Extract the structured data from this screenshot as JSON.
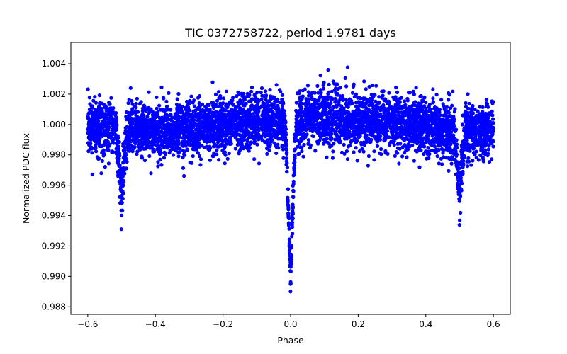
{
  "chart_data": {
    "type": "scatter",
    "title": "TIC 0372758722, period 1.9781 days",
    "xlabel": "Phase",
    "ylabel": "Normalized PDC flux",
    "xlim": [
      -0.65,
      0.65
    ],
    "ylim": [
      0.9875,
      1.0054
    ],
    "grid": false,
    "xticks": [
      -0.6,
      -0.4,
      -0.2,
      0.0,
      0.2,
      0.4,
      0.6
    ],
    "xtick_labels": [
      "−0.6",
      "−0.4",
      "−0.2",
      "0.0",
      "0.2",
      "0.4",
      "0.6"
    ],
    "yticks": [
      0.988,
      0.99,
      0.992,
      0.994,
      0.996,
      0.998,
      1.0,
      1.002,
      1.004
    ],
    "ytick_labels": [
      "0.988",
      "0.990",
      "0.992",
      "0.994",
      "0.996",
      "0.998",
      "1.000",
      "1.002",
      "1.004"
    ],
    "series": [
      {
        "name": "PDC flux",
        "color": "#0000ff",
        "phase_range": [
          -0.6,
          0.6
        ],
        "baseline": 1.0,
        "scatter_sigma": 0.0009,
        "primary_eclipse": {
          "center": 0.0,
          "depth": 0.0105,
          "half_width": 0.018
        },
        "secondary_eclipse": {
          "centers": [
            -0.5,
            0.5
          ],
          "depth": 0.0045,
          "half_width": 0.02
        },
        "approx_points": 5200
      }
    ]
  }
}
